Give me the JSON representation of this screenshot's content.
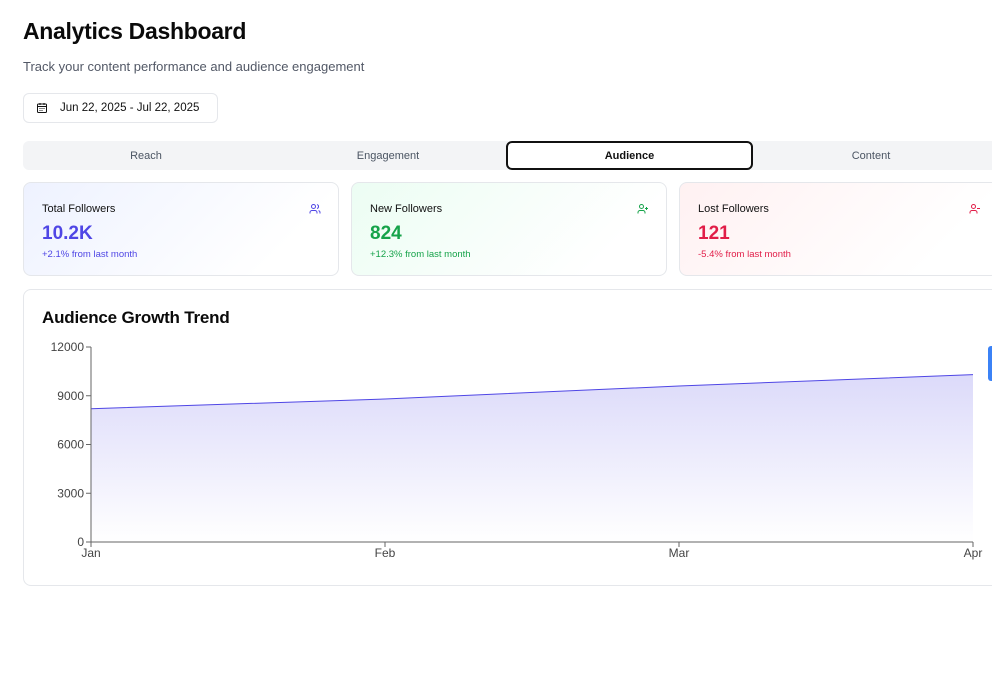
{
  "header": {
    "title": "Analytics Dashboard",
    "subtitle": "Track your content performance and audience engagement"
  },
  "date_range": {
    "label": "Jun 22, 2025 - Jul 22, 2025",
    "icon": "calendar-icon"
  },
  "tabs": [
    {
      "label": "Reach",
      "active": false
    },
    {
      "label": "Engagement",
      "active": false
    },
    {
      "label": "Audience",
      "active": true
    },
    {
      "label": "Content",
      "active": false
    }
  ],
  "cards": {
    "total": {
      "title": "Total Followers",
      "value": "10.2K",
      "change": "+2.1% from last month",
      "icon": "users-icon",
      "color": "#4f46e5"
    },
    "new": {
      "title": "New Followers",
      "value": "824",
      "change": "+12.3% from last month",
      "icon": "user-plus-icon",
      "color": "#16a34a"
    },
    "lost": {
      "title": "Lost Followers",
      "value": "121",
      "change": "-5.4% from last month",
      "icon": "user-minus-icon",
      "color": "#e11d48"
    }
  },
  "chart": {
    "title": "Audience Growth Trend"
  },
  "chart_data": {
    "type": "area",
    "title": "Audience Growth Trend",
    "x": [
      "Jan",
      "Feb",
      "Mar",
      "Apr"
    ],
    "series": [
      {
        "values": [
          8200,
          8800,
          9600,
          10300
        ],
        "color": "#4f46e5"
      }
    ],
    "yticks": [
      0,
      3000,
      6000,
      9000,
      12000
    ],
    "ylim": [
      0,
      12000
    ],
    "grid": false
  }
}
